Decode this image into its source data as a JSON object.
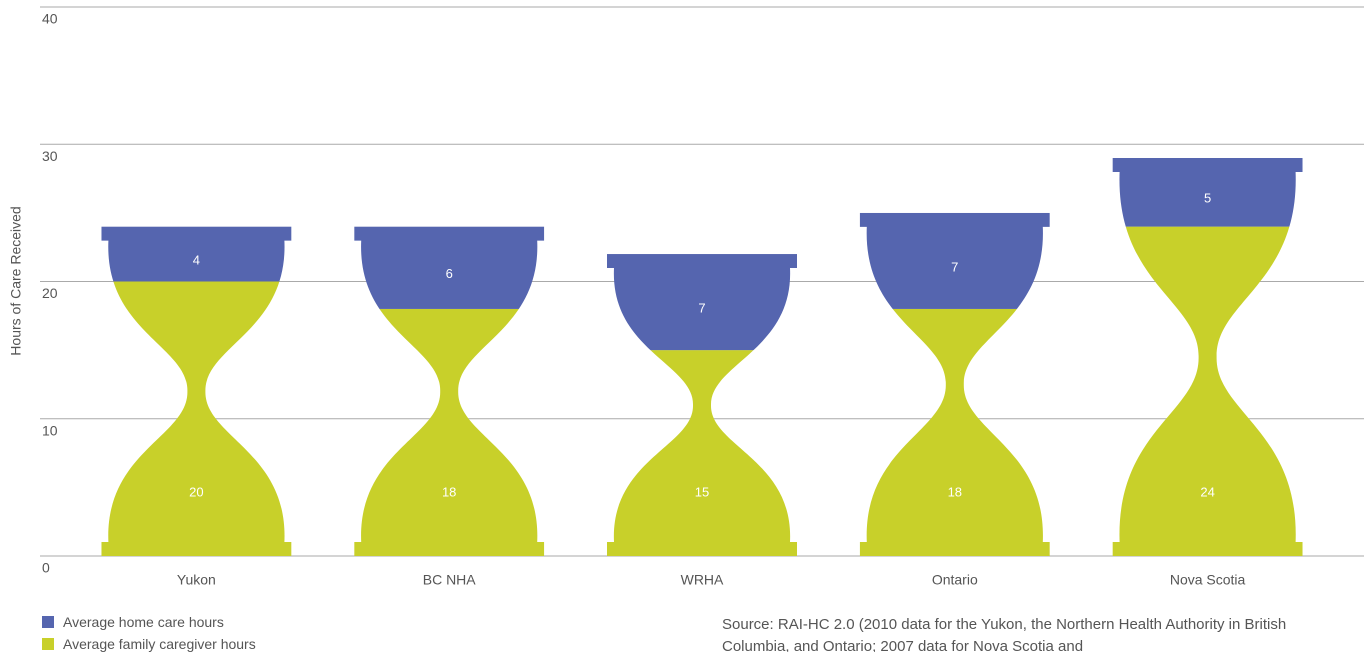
{
  "chart_data": {
    "type": "hourglass",
    "ylabel": "Hours of Care Received",
    "categories": [
      "Yukon",
      "BC NHA",
      "WRHA",
      "Ontario",
      "Nova Scotia"
    ],
    "series": [
      {
        "name": "Average home care hours",
        "color": "#5565af",
        "values": [
          4,
          6,
          7,
          7,
          5
        ]
      },
      {
        "name": "Average family caregiver hours",
        "color": "#c8d02a",
        "values": [
          20,
          18,
          15,
          18,
          24
        ]
      }
    ],
    "ylim": [
      0,
      40
    ],
    "yticks": [
      0,
      10,
      20,
      30,
      40
    ],
    "grid": true,
    "source": "Source: RAI-HC 2.0 (2010 data for the Yukon, the Northern Health Authority in British Columbia, and Ontario; 2007 data for Nova Scotia and"
  }
}
